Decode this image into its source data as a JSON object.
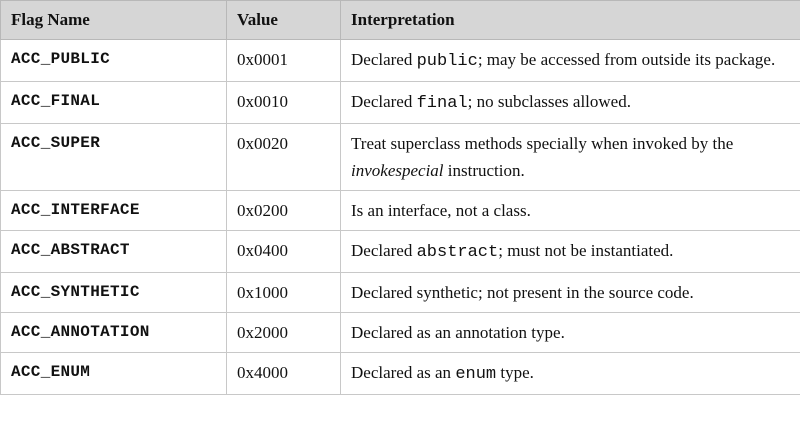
{
  "table": {
    "headers": {
      "flag": "Flag Name",
      "value": "Value",
      "interpretation": "Interpretation"
    },
    "rows": [
      {
        "flag": "ACC_PUBLIC",
        "value": "0x0001",
        "interp": {
          "a": "Declared ",
          "code": "public",
          "b": "; may be accessed from outside its package."
        }
      },
      {
        "flag": "ACC_FINAL",
        "value": "0x0010",
        "interp": {
          "a": "Declared ",
          "code": "final",
          "b": "; no subclasses allowed."
        }
      },
      {
        "flag": "ACC_SUPER",
        "value": "0x0020",
        "interp": {
          "a": "Treat superclass methods specially when invoked by the ",
          "em": "invokespecial",
          "b": " instruction."
        }
      },
      {
        "flag": "ACC_INTERFACE",
        "value": "0x0200",
        "interp": {
          "a": "Is an interface, not a class."
        }
      },
      {
        "flag": "ACC_ABSTRACT",
        "value": "0x0400",
        "interp": {
          "a": "Declared ",
          "code": "abstract",
          "b": "; must not be instantiated."
        }
      },
      {
        "flag": "ACC_SYNTHETIC",
        "value": "0x1000",
        "interp": {
          "a": "Declared synthetic; not present in the source code."
        }
      },
      {
        "flag": "ACC_ANNOTATION",
        "value": "0x2000",
        "interp": {
          "a": "Declared as an annotation type."
        }
      },
      {
        "flag": "ACC_ENUM",
        "value": "0x4000",
        "interp": {
          "a": "Declared as an ",
          "code": "enum",
          "b": " type."
        }
      }
    ]
  }
}
